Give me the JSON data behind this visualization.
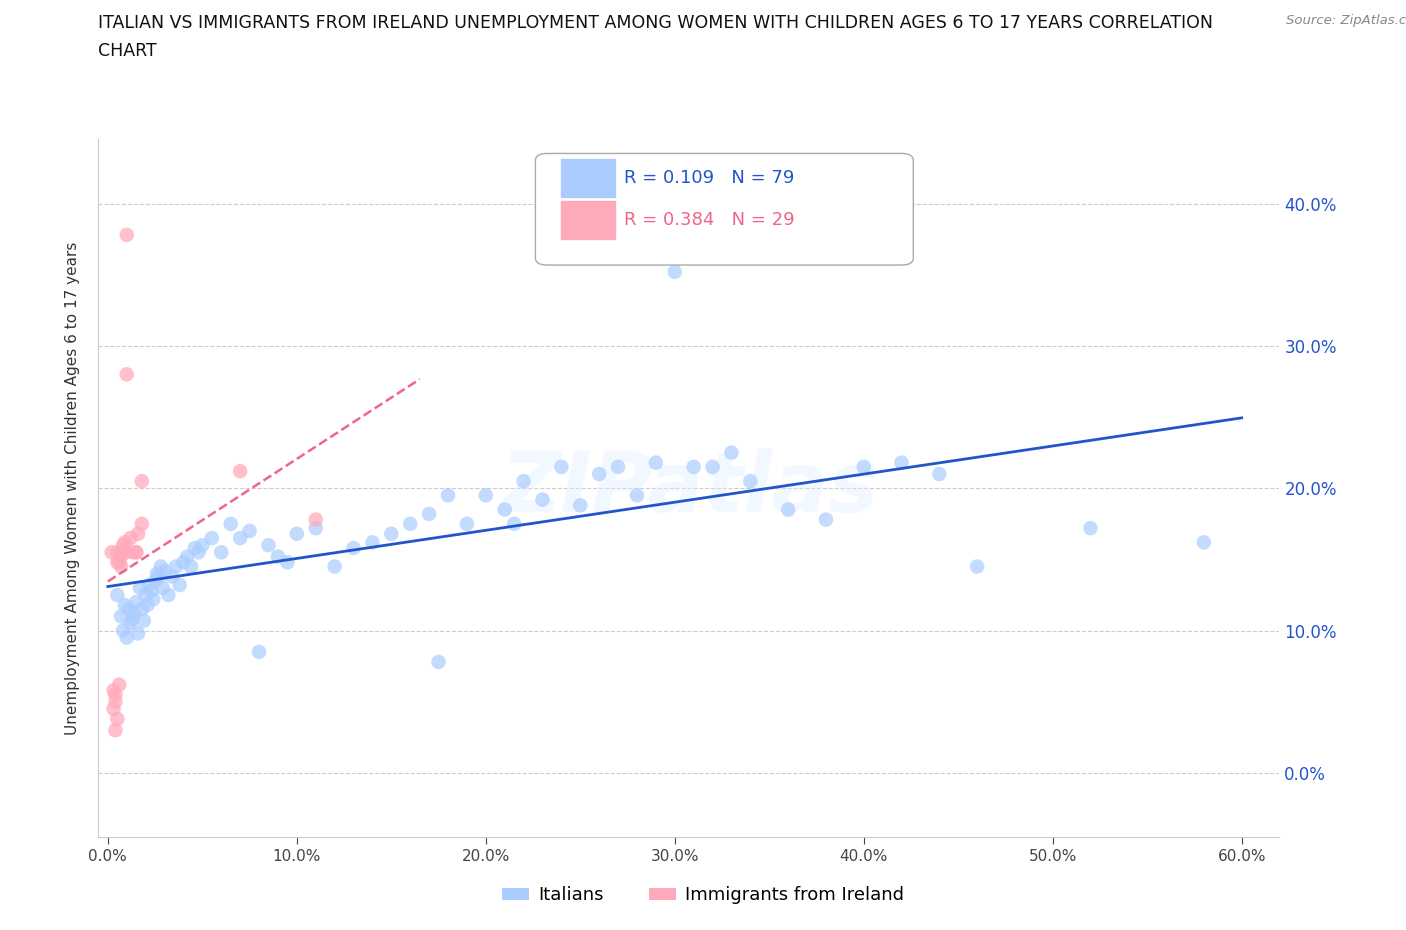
{
  "title_line1": "ITALIAN VS IMMIGRANTS FROM IRELAND UNEMPLOYMENT AMONG WOMEN WITH CHILDREN AGES 6 TO 17 YEARS CORRELATION",
  "title_line2": "CHART",
  "source": "Source: ZipAtlas.com",
  "ylabel": "Unemployment Among Women with Children Ages 6 to 17 years",
  "xlim": [
    -0.005,
    0.62
  ],
  "ylim": [
    -0.045,
    0.445
  ],
  "yticks": [
    0.0,
    0.1,
    0.2,
    0.3,
    0.4
  ],
  "xticks": [
    0.0,
    0.1,
    0.2,
    0.3,
    0.4,
    0.5,
    0.6
  ],
  "grid_color": "#cccccc",
  "background_color": "#ffffff",
  "blue_color": "#aaccff",
  "pink_color": "#ffaabb",
  "blue_line_color": "#2255cc",
  "pink_line_color": "#ee6688",
  "watermark_text": "ZIPatlas",
  "legend_R_blue": "R = 0.109",
  "legend_N_blue": "N = 79",
  "legend_R_pink": "R = 0.384",
  "legend_N_pink": "N = 29",
  "legend_label_blue": "Italians",
  "legend_label_pink": "Immigrants from Ireland",
  "italians_x": [
    0.005,
    0.007,
    0.008,
    0.009,
    0.01,
    0.011,
    0.012,
    0.013,
    0.014,
    0.015,
    0.016,
    0.017,
    0.018,
    0.019,
    0.02,
    0.021,
    0.022,
    0.023,
    0.024,
    0.025,
    0.026,
    0.027,
    0.028,
    0.029,
    0.03,
    0.032,
    0.034,
    0.036,
    0.038,
    0.04,
    0.042,
    0.044,
    0.046,
    0.048,
    0.05,
    0.055,
    0.06,
    0.065,
    0.07,
    0.075,
    0.08,
    0.085,
    0.09,
    0.095,
    0.1,
    0.11,
    0.12,
    0.13,
    0.14,
    0.15,
    0.16,
    0.17,
    0.175,
    0.18,
    0.19,
    0.2,
    0.21,
    0.215,
    0.22,
    0.23,
    0.24,
    0.25,
    0.26,
    0.27,
    0.28,
    0.29,
    0.3,
    0.31,
    0.32,
    0.33,
    0.34,
    0.36,
    0.38,
    0.4,
    0.42,
    0.44,
    0.46,
    0.52,
    0.58
  ],
  "italians_y": [
    0.125,
    0.11,
    0.1,
    0.118,
    0.095,
    0.115,
    0.105,
    0.108,
    0.112,
    0.12,
    0.098,
    0.13,
    0.115,
    0.107,
    0.125,
    0.118,
    0.132,
    0.128,
    0.122,
    0.135,
    0.14,
    0.138,
    0.145,
    0.13,
    0.142,
    0.125,
    0.138,
    0.145,
    0.132,
    0.148,
    0.152,
    0.145,
    0.158,
    0.155,
    0.16,
    0.165,
    0.155,
    0.175,
    0.165,
    0.17,
    0.085,
    0.16,
    0.152,
    0.148,
    0.168,
    0.172,
    0.145,
    0.158,
    0.162,
    0.168,
    0.175,
    0.182,
    0.078,
    0.195,
    0.175,
    0.195,
    0.185,
    0.175,
    0.205,
    0.192,
    0.215,
    0.188,
    0.21,
    0.215,
    0.195,
    0.218,
    0.352,
    0.215,
    0.215,
    0.225,
    0.205,
    0.185,
    0.178,
    0.215,
    0.218,
    0.21,
    0.145,
    0.172,
    0.162
  ],
  "ireland_x": [
    0.002,
    0.003,
    0.003,
    0.004,
    0.004,
    0.004,
    0.005,
    0.005,
    0.005,
    0.006,
    0.006,
    0.007,
    0.007,
    0.007,
    0.008,
    0.008,
    0.009,
    0.009,
    0.01,
    0.01,
    0.012,
    0.013,
    0.015,
    0.015,
    0.016,
    0.018,
    0.018,
    0.07,
    0.11
  ],
  "ireland_y": [
    0.155,
    0.058,
    0.045,
    0.03,
    0.055,
    0.05,
    0.155,
    0.148,
    0.038,
    0.062,
    0.148,
    0.152,
    0.155,
    0.145,
    0.16,
    0.155,
    0.162,
    0.155,
    0.378,
    0.28,
    0.165,
    0.155,
    0.155,
    0.155,
    0.168,
    0.175,
    0.205,
    0.212,
    0.178
  ]
}
